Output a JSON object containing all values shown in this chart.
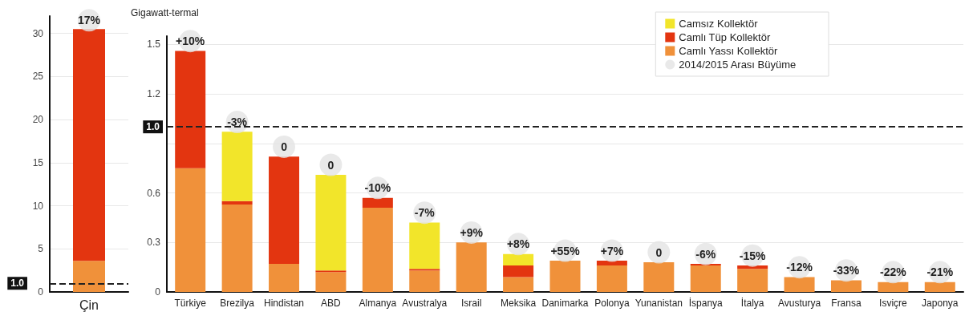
{
  "chart_data": [
    {
      "type": "bar",
      "categories": [
        "Çin"
      ],
      "stacked": true,
      "ylim": [
        0,
        32
      ],
      "yticks": [
        0,
        5,
        10,
        15,
        20,
        25,
        30
      ],
      "grid": "y",
      "legend": false,
      "series": [
        {
          "color": "#f0913a",
          "values": [
            3.6
          ]
        },
        {
          "color": "#e33510",
          "values": [
            26.9
          ]
        },
        {
          "type": "scatter",
          "marker": "circle",
          "color": "#e4e4e4",
          "values": [
            31.5
          ]
        }
      ],
      "annotations": [
        {
          "text": "17%",
          "x": "Çin",
          "y": 31.5
        }
      ],
      "ref_lines": [
        {
          "axis": "y",
          "value": 1.0,
          "label": "1.0"
        }
      ]
    },
    {
      "type": "bar",
      "ylabel": "Gigawatt-termal",
      "categories": [
        "Türkiye",
        "Brezilya",
        "Hindistan",
        "ABD",
        "Almanya",
        "Avustralya",
        "Israil",
        "Meksika",
        "Danimarka",
        "Polonya",
        "Yunanistan",
        "İspanya",
        "İtalya",
        "Avusturya",
        "Fransa",
        "Isviçre",
        "Japonya"
      ],
      "stacked": true,
      "ylim": [
        0,
        1.55
      ],
      "yticks": [
        0,
        0.3,
        0.6,
        {
          "value": 0.9,
          "label": null
        },
        1.2,
        1.5
      ],
      "grid": "y",
      "legend": "top right",
      "series": [
        {
          "name": "Camlı Yassı Kollektör",
          "color": "#f0913a",
          "values": [
            0.75,
            0.53,
            0.17,
            0.12,
            0.51,
            0.13,
            0.3,
            0.09,
            0.19,
            0.16,
            0.18,
            0.16,
            0.14,
            0.09,
            0.07,
            0.06,
            0.06
          ]
        },
        {
          "name": "Camlı Tüp Kollektör",
          "color": "#e33510",
          "values": [
            0.71,
            0.02,
            0.65,
            0.01,
            0.06,
            0.01,
            0,
            0.07,
            0,
            0.03,
            0,
            0.01,
            0.02,
            0,
            0,
            0,
            0
          ]
        },
        {
          "name": "Camsız Kollektör",
          "color": "#f2e52a",
          "values": [
            0,
            0.42,
            0,
            0.58,
            0,
            0.28,
            0,
            0.07,
            0,
            0,
            0,
            0,
            0,
            0,
            0,
            0,
            0
          ]
        },
        {
          "name": "2014/2015 Arası Büyüme",
          "type": "scatter",
          "marker": "circle",
          "color": "#e4e4e4",
          "values": [
            1.52,
            1.03,
            0.88,
            0.77,
            0.63,
            0.48,
            0.36,
            0.29,
            0.25,
            0.25,
            0.24,
            0.23,
            0.22,
            0.15,
            0.13,
            0.12,
            0.12
          ]
        }
      ],
      "annotations": [
        {
          "text": "+10%",
          "x": "Türkiye",
          "y": 1.52
        },
        {
          "text": "-3%",
          "x": "Brezilya",
          "y": 1.03
        },
        {
          "text": "0",
          "x": "Hindistan",
          "y": 0.88
        },
        {
          "text": "0",
          "x": "ABD",
          "y": 0.77
        },
        {
          "text": "-10%",
          "x": "Almanya",
          "y": 0.63
        },
        {
          "text": "-7%",
          "x": "Avustralya",
          "y": 0.48
        },
        {
          "text": "+9%",
          "x": "Israil",
          "y": 0.36
        },
        {
          "text": "+8%",
          "x": "Meksika",
          "y": 0.29
        },
        {
          "text": "+55%",
          "x": "Danimarka",
          "y": 0.25
        },
        {
          "text": "+7%",
          "x": "Polonya",
          "y": 0.25
        },
        {
          "text": "0",
          "x": "Yunanistan",
          "y": 0.24
        },
        {
          "text": "-6%",
          "x": "İspanya",
          "y": 0.23
        },
        {
          "text": "-15%",
          "x": "İtalya",
          "y": 0.22
        },
        {
          "text": "-12%",
          "x": "Avusturya",
          "y": 0.15
        },
        {
          "text": "-33%",
          "x": "Fransa",
          "y": 0.13
        },
        {
          "text": "-22%",
          "x": "Isviçre",
          "y": 0.12
        },
        {
          "text": "-21%",
          "x": "Japonya",
          "y": 0.12
        }
      ],
      "ref_lines": [
        {
          "axis": "y",
          "value": 1.0,
          "label": "1.0"
        }
      ]
    }
  ]
}
